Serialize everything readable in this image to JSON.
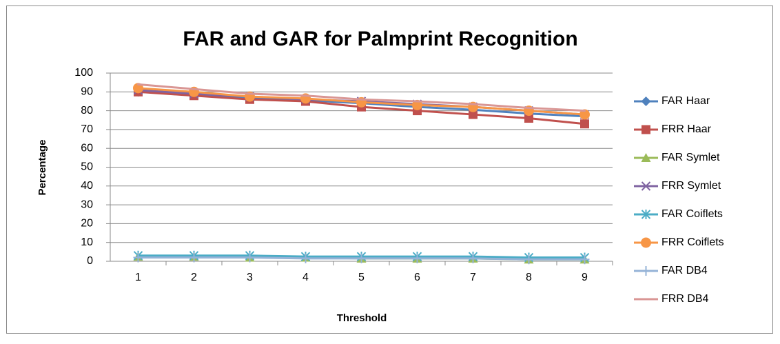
{
  "chart_data": {
    "type": "line",
    "title": "FAR and GAR for Palmprint Recognition",
    "x_label": "Threshold",
    "y_label": "Percentage",
    "categories": [
      "1",
      "2",
      "3",
      "4",
      "5",
      "6",
      "7",
      "8",
      "9"
    ],
    "ylim": [
      0,
      100
    ],
    "yticks": [
      0,
      10,
      20,
      30,
      40,
      50,
      60,
      70,
      80,
      90,
      100
    ],
    "grid": true,
    "legend": "right",
    "series": [
      {
        "name": "FAR Haar",
        "color": "#4f81bd",
        "marker": "diamond",
        "values": [
          90,
          88.5,
          87,
          85.5,
          84,
          82,
          80.5,
          78.5,
          77
        ]
      },
      {
        "name": "FRR Haar",
        "color": "#c0504d",
        "marker": "square",
        "values": [
          90,
          88,
          86,
          85,
          82,
          80,
          78,
          76,
          73
        ]
      },
      {
        "name": "FAR Symlet",
        "color": "#9bbb59",
        "marker": "triangle",
        "values": [
          2.5,
          2.5,
          2,
          2,
          1.5,
          1.5,
          1.5,
          1,
          1
        ]
      },
      {
        "name": "FRR Symlet",
        "color": "#8064a2",
        "marker": "x",
        "values": [
          91,
          89,
          87.5,
          86,
          85,
          83.5,
          82,
          80,
          78
        ]
      },
      {
        "name": "FAR Coiflets",
        "color": "#4bacc6",
        "marker": "star",
        "values": [
          3,
          3,
          3,
          2.5,
          2.5,
          2.5,
          2.5,
          2,
          2
        ]
      },
      {
        "name": "FRR Coiflets",
        "color": "#f79646",
        "marker": "circle",
        "values": [
          92,
          90,
          87.5,
          86.5,
          84.5,
          83,
          82,
          80,
          78
        ]
      },
      {
        "name": "FAR DB4",
        "color": "#95b3d7",
        "marker": "plus",
        "values": [
          2,
          2,
          2,
          1.5,
          1.5,
          1.5,
          1.5,
          1,
          1
        ]
      },
      {
        "name": "FRR DB4",
        "color": "#d99694",
        "marker": "none",
        "values": [
          94,
          91.5,
          89,
          88,
          86,
          85,
          83.5,
          81.5,
          80
        ]
      }
    ]
  }
}
